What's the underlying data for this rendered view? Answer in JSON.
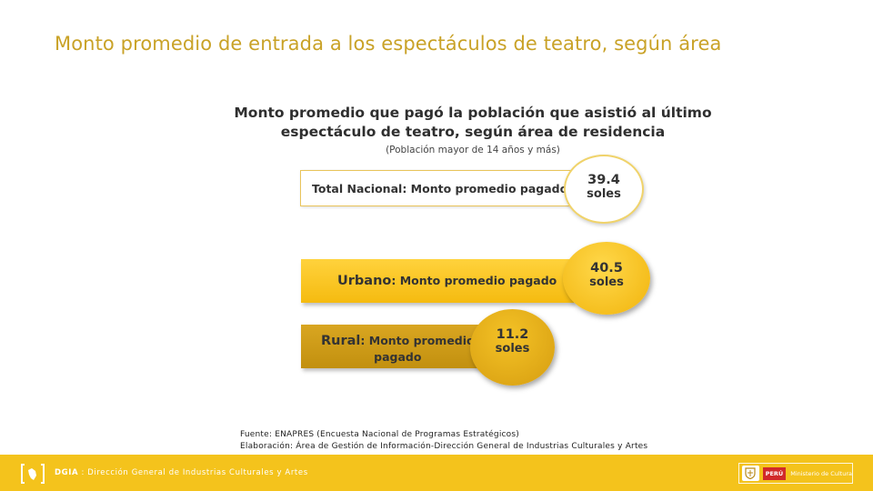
{
  "slide": {
    "title": "Monto promedio de entrada a los espectáculos de teatro, según área"
  },
  "chart_data": {
    "type": "bar",
    "title_line1": "Monto promedio que pagó la población que asistió al último",
    "title_line2": "espectáculo de teatro, según área de residencia",
    "subtitle": "(Población mayor de 14 años y más)",
    "categories": [
      "Total Nacional",
      "Urbano",
      "Rural"
    ],
    "values": [
      39.4,
      40.5,
      11.2
    ],
    "unit": "soles",
    "items": [
      {
        "name": "Total Nacional",
        "label_rest": ": Monto promedio pagado",
        "value_text": "39.4",
        "unit": "soles",
        "color": "#ffffff"
      },
      {
        "name": "Urbano",
        "label_rest": ": Monto promedio pagado",
        "value_text": "40.5",
        "unit": "soles",
        "color": "#f5bb10"
      },
      {
        "name": "Rural",
        "label_rest_line1": ": Monto promedio",
        "label_rest_line2": "pagado",
        "value_text": "11.2",
        "unit": "soles",
        "color": "#c2900f"
      }
    ]
  },
  "source": {
    "line1": "Fuente: ENAPRES (Encuesta Nacional de Programas Estratégicos)",
    "line2": "Elaboración: Área de Gestión de Información-Dirección General de Industrias Culturales y Artes"
  },
  "footer": {
    "abbr": "DGIA",
    "text": " : Dirección General de Industrias Culturales y Artes",
    "peru": "PERÚ",
    "ministry": "Ministerio de Cultura",
    "accent_color": "#f4c31c",
    "logo_icon": "bracket-logo-icon",
    "emblem_icon": "national-shield-icon"
  },
  "colors": {
    "title": "#c9a227",
    "urbano": "#f5bb10",
    "rural": "#c2900f"
  }
}
